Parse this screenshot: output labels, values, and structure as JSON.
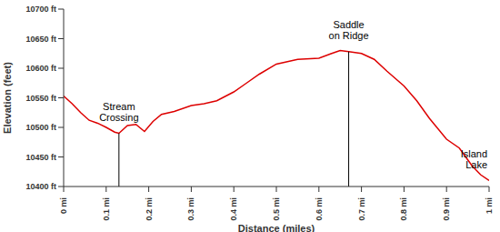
{
  "chart_data": {
    "type": "line",
    "x_label": "Distance (miles)",
    "y_label": "Elevation (feet)",
    "x": [
      0,
      0.02,
      0.04,
      0.06,
      0.08,
      0.1,
      0.12,
      0.13,
      0.15,
      0.17,
      0.19,
      0.21,
      0.23,
      0.26,
      0.3,
      0.33,
      0.36,
      0.4,
      0.43,
      0.46,
      0.5,
      0.55,
      0.6,
      0.63,
      0.65,
      0.67,
      0.7,
      0.73,
      0.76,
      0.8,
      0.83,
      0.86,
      0.9,
      0.93,
      0.96,
      0.98,
      1.0
    ],
    "values": [
      10553,
      10540,
      10525,
      10512,
      10507,
      10500,
      10492,
      10490,
      10503,
      10505,
      10493,
      10510,
      10522,
      10527,
      10537,
      10540,
      10545,
      10560,
      10575,
      10590,
      10607,
      10615,
      10617,
      10625,
      10630,
      10628,
      10625,
      10615,
      10595,
      10570,
      10545,
      10515,
      10480,
      10465,
      10435,
      10420,
      10410
    ],
    "color": "#dd0000",
    "xlim": [
      0,
      1
    ],
    "xticks": [
      {
        "value": 0,
        "label": "0 mi"
      },
      {
        "value": 0.1,
        "label": "0.1 mi"
      },
      {
        "value": 0.2,
        "label": "0.2 mi"
      },
      {
        "value": 0.3,
        "label": "0.3 mi"
      },
      {
        "value": 0.4,
        "label": "0.4 mi"
      },
      {
        "value": 0.5,
        "label": "0.5 mi"
      },
      {
        "value": 0.6,
        "label": "0.6 mi"
      },
      {
        "value": 0.7,
        "label": "0.7 mi"
      },
      {
        "value": 0.8,
        "label": "0.8 mi"
      },
      {
        "value": 0.9,
        "label": "0.9 mi"
      },
      {
        "value": 1,
        "label": "1 mi"
      }
    ],
    "ylim": [
      10400,
      10700
    ],
    "yticks": [
      {
        "value": 10400,
        "label": "10400 ft"
      },
      {
        "value": 10450,
        "label": "10450 ft"
      },
      {
        "value": 10500,
        "label": "10500 ft"
      },
      {
        "value": 10550,
        "label": "10550 ft"
      },
      {
        "value": 10600,
        "label": "10600 ft"
      },
      {
        "value": 10650,
        "label": "10650 ft"
      },
      {
        "value": 10700,
        "label": "10700 ft"
      }
    ],
    "grid": false,
    "annotations": [
      {
        "text": "Stream Crossing",
        "x": 0.13,
        "y": 10490,
        "line_style": "solid"
      },
      {
        "text": "Saddle on Ridge",
        "x": 0.67,
        "y": 10628,
        "line_style": "solid"
      },
      {
        "text": "Island Lake",
        "x": 1.0,
        "y": 10410,
        "line_style": "none"
      }
    ]
  }
}
